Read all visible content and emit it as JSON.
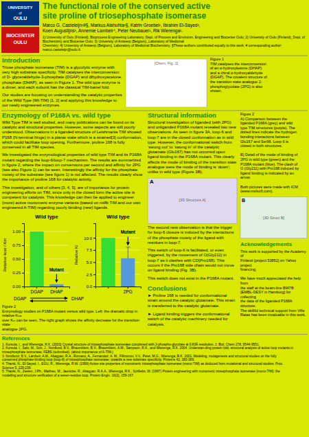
{
  "chart_data": [
    {
      "type": "bar",
      "title": "Wild type",
      "y_label": "Relative kcat / Km",
      "categories": [
        "DGAP",
        "DHAP"
      ],
      "values": [
        1.0,
        0.04
      ],
      "colors": [
        "#33dd33",
        "#5599dd"
      ],
      "ylim": [
        0,
        1.15
      ],
      "yticks": [
        {
          "value": 0,
          "label": "0.00"
        },
        0.25,
        {
          "value": 0.5,
          "label": "0.50"
        },
        0.75,
        {
          "value": 1,
          "label": "1.00"
        }
      ],
      "grid": true,
      "annotations": [
        "Mutant"
      ]
    },
    {
      "type": "bar",
      "title": "Wild type",
      "y_label": "Relative Ki",
      "categories": [
        null,
        "2PG"
      ],
      "values": [
        10.0,
        5.8
      ],
      "error_plus": [
        null,
        2.3
      ],
      "colors": [
        "#33dd33",
        "#5599dd"
      ],
      "ylim": [
        0,
        13
      ],
      "yticks": [
        {
          "value": 0,
          "label": "0.0"
        },
        2.5,
        {
          "value": 5,
          "label": "5.0"
        },
        7.5,
        {
          "value": 10,
          "label": "10.0"
        }
      ],
      "grid": true,
      "annotations": [
        "Mutant"
      ]
    }
  ],
  "page": {
    "bg_color": "#d8e800",
    "logo_colors": [
      "#003377",
      "#cc1111"
    ],
    "logo_texts": [
      "UNIVERSITY",
      "of",
      "OULU",
      "BIOCENTER",
      "OULU"
    ],
    "title": "The functional role of the conserved active\nsite proline of triosephosphate isomerase",
    "title_color": "#228800",
    "authors": "Marco G. Casteleijn¹#§, Markus Alahuhta²§, Katrin Groebel¹, Ibrahim El-Sayed³,\nKoen Augustijns³, Annemie Lambeir⁴, Peter Neubauer¹, Rik Wierenga².",
    "affiliations": "1) University of Oulu (Finland), Bioprocess Engineering Laboratory, Dept. of Process and Environm. Engineering and Biocenter Oulu; 2) University of Oulu (Finland), Dept. of Biochemistry and Biocenter Oulu; 3) University of Antwerp (Belgium), Laboratory of Medicinal\nChemistry; 4) University of Antwerp (Belgium), Laboratory of Medicinal Biochemistry. §These authors contributed equally to this work; # corresponding author: marco.casteleijn@oulu.fi.",
    "section_color": "#228800",
    "intro_title": "Introduction",
    "intro_text": "Triose phosphate isomerase (TIM) is a glycolytic enzyme with very high\nsubstrate specificity. TIM catalyses the interconversion of D-\nglyceraldehyde-3-phosphate (DGAP) and dihydroxyacetone phosphate\n(DHAP), as seen in Figure 1. The wild type enzyme is a dimer, and each\nsubunit has the classical TIM-barrel fold.\n\nOur studies are focusing on understanding the catalytic properties of the\nWild Type (Wt-TIM) [1, 2] and applying this knowledge to our newly\nengineered enzymes.",
    "fig1_placeholder": "[Chem. Fig. 1]",
    "fig1_caption": "Figure 1\nTIM catalyses the interconversion\nof an α-hydroxyketone (DHAP)\nand a chiral α-hydroxyaldehyde\n(DGAP). The covalent structure of\nthe transition state analogue 2-\nphosphoglycolate (2PG) is also\nshown.",
    "enzym_title": "Enzymology of P168A vs. wild type",
    "enzym_text": "Wild Type TIM is well studied, and many publications can be found on its\ncatalytic and structural properties. However, some aspects are still poorly\nunderstood. Observations in a liganded structure of Leishmania TIM\nshowed P168 (N-terminal hinge) in a planar state which is a strained[3]\nconformation, which could facilitate loop opening. Furthermore, proline\n168 is fully conserved in all TIM species.\n\nWe investigated the enzymological properties of wild type TIM and its\nP168A mutant regarding the loop-6/loop-7 mechanism. The results are\nsummerized in figure 2, where the impact on conversions per second and\naffinity for 2PG (see also Figure 1) can be seen. Interestingly the affinity\nfor the phosphate moiety of the substrate (see figure 1) is not affected.\nThe results clearly show the importance of proline 168 for catalytic\nactivity.\n\nThis investigation, and of others [3, 4, 5], are of importance for protein\nengineering efforts on TIM, since only in the closed form the active site is\ncompetent for catalysis. This knowledge can then be applied to engineer\n(more) active monomeric enzyme variants (based on mt8b TIM and our\nown engineered A-TIM) regarding poorly binding (new) ligands.",
    "struct_title": "Structural information",
    "struct_text": "Structural investigation of liganded (with 2PG) and unliganded P168A\nmutant revealed two new observations. As seen in figure 3A, loop-6 and\nloop-7 are in the closed conformation as in wild type. However, the\nconformational switch from ‘swung out’ to ‘swung in’ of the catalytic\nglutamate (Glu167) has not occurred upon ligand binding in the P168A\nmutant. This clearly affects the mode of binding of the transition state\nanalogue were the mode of binding is ‘down’; unlike in wild type (Figure 3B).",
    "struct_text_2": "The second new observation is that the\ntrigger for loop-6 closure is induced by the\ninteractions of the phosphate moiety of the\nligand with residues in loop-7.\n\nThis switch of loop-6 is facilitated, or even\ntriggered, by the movement of O(Gly211) in loop-7 as it clashes with\nCD(Pro168). This occurs if the Pro168 side chain would not move on ligand\nbinding (Fig. 3B).\n\nThis switch does not exist in the P168A mutant.",
    "fig3a_label": "A",
    "fig3a_placeholder": "[3D Structure A]",
    "fig3a_color": "#e0d8f0",
    "fig3b_label": "B",
    "fig3b_placeholder": "[3D Struct B]",
    "fig3b_color": "#e0f0e0",
    "fig2_caption": "Figure 2\nA) Comparison between the\nliganded P168A (grey) and wild\ntype TIM structures (purple). The\ndotted lines indicate the hydrogen\nbonding interactions between\nGlu167 and Ser96. Loop 6 is\nclosed in both structures.\n\nB) Detail of the mode of binding of\n2PG in wild type (green) and the\nP168A mutant (blue). The clash of\nO (Gly211) with Pro168 induced by\nligand binding is indicated by an\narrow.\n\nBoth pictures were made with ICM\n(www.molsoft.com).",
    "reaction": [
      "DGAP",
      "DHAP"
    ],
    "fig3_caption": "Figure 2\nEnzymology studies on P168A mutant versus wild type. Left: the dramatic drop in relative Kₕₐₜ\nover Kₘ can be seen. The right graph shows the affinity decrease for the transition state\nanalogue 2PG.",
    "concl_title": "Conclusions",
    "concl_text": "► Proline 168 is needed for conformational strain around the catalytic\n  glutamate. This strain is transferred to the catalytic glutamate.\n\n► Ligand binding triggers the conformational switch of the catalytic\n  machinery needed for catalysis.",
    "refs_title": "References",
    "refs_color": "#228800",
    "refs_text": "1.  Kursula, I., and Wierenga, R.K. (2003) Crystal structure of triosephosphate isomerase complexed with 2-phospho-glycolate at 0.83Å resolution.  J. Biol. Chem 278, 9544-9551.\n2.  Kursula, I., Salo, M., Sun, J., Nordlund, B.V., Bhaumblein, B.V., Bhaumblein, A.M., Sampson, R.K., and Wierenga, R.K. 2004. Understan-ding protein fold; structural analysis of active loop mutants in\n     triosephosphate isomerase. FEBS (submitted). (about importance of A-TIM.)\n3.  Nordlund, B.V., Lambeir, A.M., Abagyan, R.A., Romano, A., Fernandez, A. M., Fillmonov, V.V., Peter, M.G., Wierenga, R.K. 2001. Modeling, mutagenesis and structural studies on the fully\n     conserved phosphate-binding loop (loop-8) of triosephosphate isomerase: towards a new substrate specificity. Proteins 42, 383-389.\n4.  Thanki, N., El-Sayed, I., EGU, R., Wierenga, R.W. (1999) Active site properties of monomeric triosephosphate isomerase (mono-TIM) as deduced from mutational and structural studies. Proc.\n     Science 5, 229-239.\n5.  Thanki, N., Zeelen, J.Ph., Mathieu, M., Jaenicke, R., Abagyan, R.A.A., Wierenga, R.K., Schliebs, W. (1997) Protein engineering with monomeric triosephosphate isomerase (mono-TIM): the\n     modelling and structure verification of a seven-residue loop. Protein Engin. 10(2), 159-167.",
    "ack_title": "Acknowledgements",
    "ack_text": "This work is supported by the Academy of\nFinland (project 53852) on Yahoo project\nfinancing.\n\nWe have much appreciated the help from\nthe staff at the beam-line BW7B\n(EMBL-DESY in Hamburg) for collecting\nthe data of the liganded P168A structure.\nThe skillful technical support from Ville\nRatas has been invaluable in this work."
  }
}
